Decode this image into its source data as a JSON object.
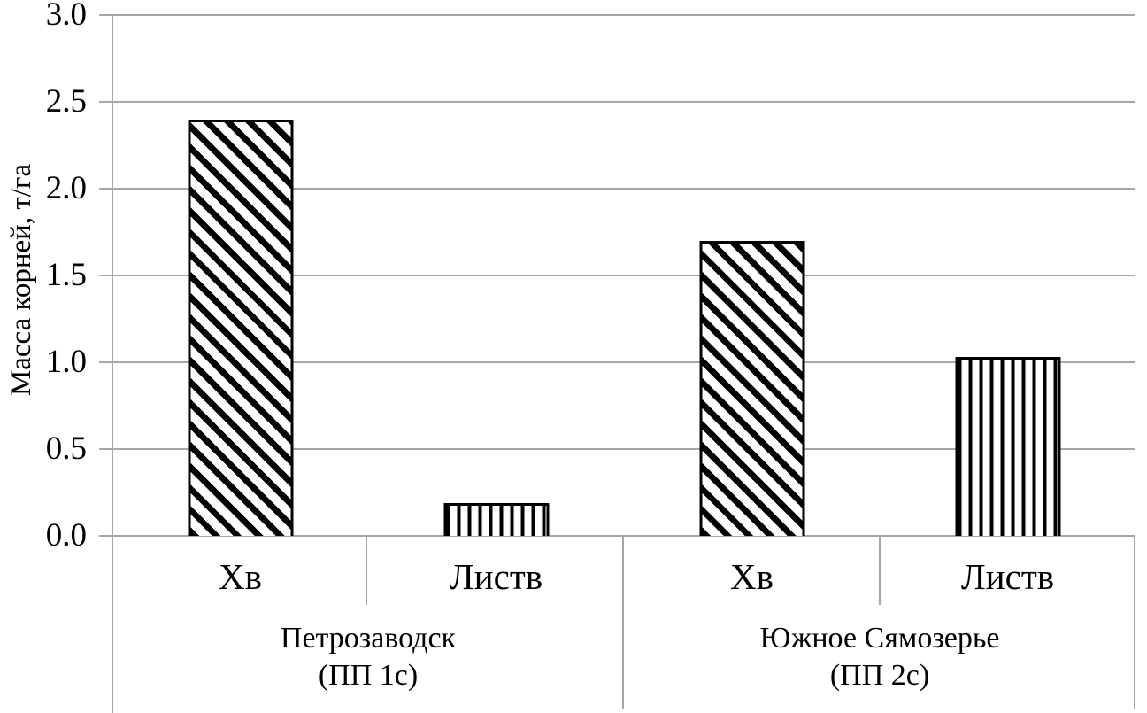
{
  "chart_data": {
    "type": "bar",
    "title": "",
    "xlabel": "",
    "ylabel": "Масса корней, т/га",
    "ylim": [
      0,
      3.0
    ],
    "ytick_labels": [
      "0.0",
      "0.5",
      "1.0",
      "1.5",
      "2.0",
      "2.5",
      "3.0"
    ],
    "grid": true,
    "legend": "none",
    "gridline_color": "#a6a6a6",
    "bar_fill_color": "#ffffff",
    "hatch_color": "#000000",
    "groups": [
      {
        "label_line1": "Петрозаводск",
        "label_line2": "(ПП 1с)",
        "categories": [
          "Хв",
          "Листв"
        ],
        "values": [
          2.4,
          0.19
        ],
        "patterns": [
          "diagonal",
          "vertical"
        ]
      },
      {
        "label_line1": "Южное Сямозерье",
        "label_line2": "(ПП 2с)",
        "categories": [
          "Хв",
          "Листв"
        ],
        "values": [
          1.7,
          1.03
        ],
        "patterns": [
          "diagonal",
          "vertical"
        ]
      }
    ]
  }
}
